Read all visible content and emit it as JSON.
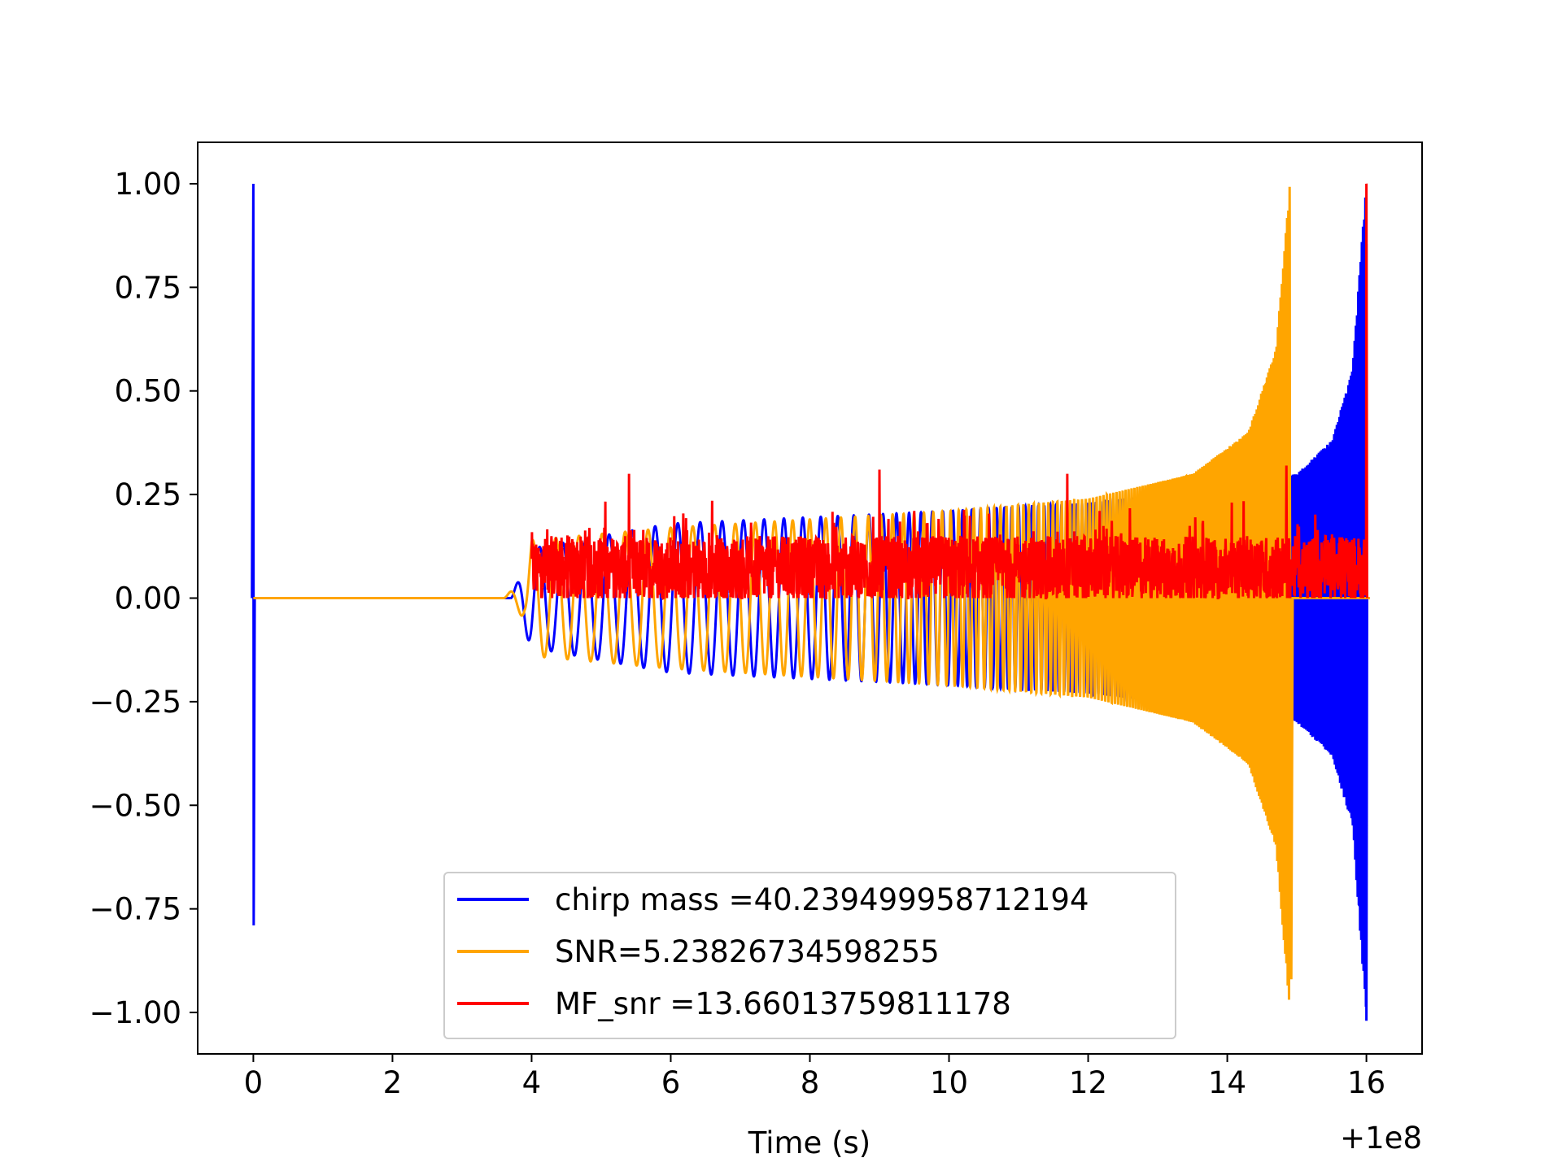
{
  "chart_data": {
    "type": "line",
    "title": "",
    "xlabel": "Time (s)",
    "ylabel": "",
    "x_offset_label": "+1e8",
    "xlim": [
      -0.8,
      16.8
    ],
    "ylim": [
      -1.1,
      1.1
    ],
    "xticks": [
      0,
      2,
      4,
      6,
      8,
      10,
      12,
      14,
      16
    ],
    "xtick_labels": [
      "0",
      "2",
      "4",
      "6",
      "8",
      "10",
      "12",
      "14",
      "16"
    ],
    "yticks": [
      1.0,
      0.75,
      0.5,
      0.25,
      0.0,
      -0.25,
      -0.5,
      -0.75,
      -1.0
    ],
    "ytick_labels": [
      "1.00",
      "0.75",
      "0.50",
      "0.25",
      "0.00",
      "−0.25",
      "−0.50",
      "−0.75",
      "−1.00"
    ],
    "grid": false,
    "legend_position": "lower-center",
    "series": [
      {
        "name": "chirp mass =40.239499958712194",
        "color": "#0000ff",
        "description_points": {
          "spike_at": 0.0,
          "spike_max": 1.0,
          "spike_min": -0.79,
          "flat_until": 3.7,
          "envelope": [
            [
              3.7,
              0.0
            ],
            [
              4.0,
              0.12
            ],
            [
              6.0,
              0.18
            ],
            [
              10.0,
              0.21
            ],
            [
              12.0,
              0.23
            ],
            [
              14.0,
              0.27
            ],
            [
              15.0,
              0.3
            ],
            [
              15.5,
              0.38
            ],
            [
              15.8,
              0.55
            ],
            [
              15.95,
              0.9
            ],
            [
              16.0,
              1.0
            ]
          ],
          "end_min": -1.02
        }
      },
      {
        "name": "SNR=5.23826734598255",
        "color": "#ffa500",
        "description_points": {
          "flat_until": 3.6,
          "envelope": [
            [
              3.6,
              0.0
            ],
            [
              3.9,
              0.05
            ],
            [
              4.0,
              0.14
            ],
            [
              6.0,
              0.17
            ],
            [
              10.0,
              0.21
            ],
            [
              12.0,
              0.24
            ],
            [
              13.5,
              0.3
            ],
            [
              14.3,
              0.4
            ],
            [
              14.7,
              0.6
            ],
            [
              14.9,
              1.0
            ]
          ],
          "end_min": -0.92,
          "end_at": 14.92
        }
      },
      {
        "name": "MF_snr =13.66013759811178",
        "color": "#ff0000",
        "description_points": {
          "start": 4.0,
          "end": 16.0,
          "baseline": 0.07,
          "noise_amplitude": 0.08,
          "peaks": [
            [
              5.4,
              0.3
            ],
            [
              9.0,
              0.31
            ],
            [
              11.7,
              0.3
            ],
            [
              14.85,
              0.32
            ],
            [
              16.0,
              1.0
            ]
          ]
        }
      }
    ]
  }
}
